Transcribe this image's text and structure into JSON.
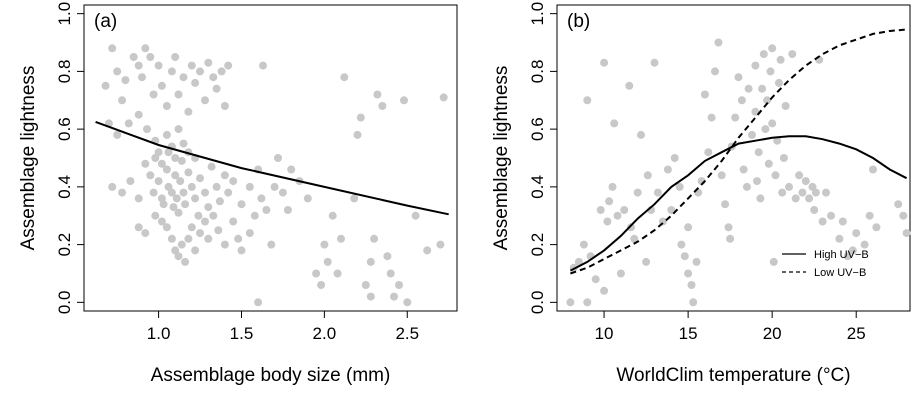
{
  "chart_data": [
    {
      "type": "scatter",
      "panel_label": "(a)",
      "xlabel": "Assemblage body size (mm)",
      "ylabel": "Assemblage lightness",
      "xlim": [
        0.55,
        2.8
      ],
      "ylim": [
        -0.03,
        1.03
      ],
      "xticks": [
        "1.0",
        "1.5",
        "2.0",
        "2.5"
      ],
      "yticks": [
        "0.0",
        "0.2",
        "0.4",
        "0.6",
        "0.8",
        "1.0"
      ],
      "point_color": "#c8c8c8",
      "points": [
        [
          0.68,
          0.75
        ],
        [
          0.72,
          0.88
        ],
        [
          0.75,
          0.8
        ],
        [
          0.7,
          0.62
        ],
        [
          0.78,
          0.7
        ],
        [
          0.8,
          0.77
        ],
        [
          0.85,
          0.85
        ],
        [
          0.88,
          0.82
        ],
        [
          0.9,
          0.78
        ],
        [
          0.92,
          0.88
        ],
        [
          0.95,
          0.85
        ],
        [
          0.97,
          0.72
        ],
        [
          1.0,
          0.82
        ],
        [
          1.02,
          0.75
        ],
        [
          1.05,
          0.68
        ],
        [
          1.08,
          0.8
        ],
        [
          1.1,
          0.85
        ],
        [
          1.12,
          0.72
        ],
        [
          1.15,
          0.78
        ],
        [
          1.18,
          0.66
        ],
        [
          1.2,
          0.82
        ],
        [
          1.22,
          0.76
        ],
        [
          1.25,
          0.8
        ],
        [
          1.28,
          0.7
        ],
        [
          1.3,
          0.83
        ],
        [
          1.33,
          0.78
        ],
        [
          1.35,
          0.74
        ],
        [
          1.38,
          0.8
        ],
        [
          1.4,
          0.68
        ],
        [
          1.42,
          0.82
        ],
        [
          0.75,
          0.58
        ],
        [
          0.82,
          0.62
        ],
        [
          0.88,
          0.65
        ],
        [
          0.93,
          0.6
        ],
        [
          0.98,
          0.56
        ],
        [
          1.0,
          0.52
        ],
        [
          1.05,
          0.58
        ],
        [
          1.08,
          0.54
        ],
        [
          1.12,
          0.6
        ],
        [
          1.15,
          0.55
        ],
        [
          0.72,
          0.4
        ],
        [
          0.78,
          0.38
        ],
        [
          0.83,
          0.42
        ],
        [
          0.88,
          0.36
        ],
        [
          0.92,
          0.48
        ],
        [
          0.95,
          0.44
        ],
        [
          0.97,
          0.38
        ],
        [
          1.0,
          0.42
        ],
        [
          1.02,
          0.36
        ],
        [
          1.03,
          0.34
        ],
        [
          1.05,
          0.46
        ],
        [
          1.06,
          0.4
        ],
        [
          1.08,
          0.38
        ],
        [
          1.09,
          0.33
        ],
        [
          1.1,
          0.44
        ],
        [
          1.11,
          0.36
        ],
        [
          1.12,
          0.31
        ],
        [
          1.13,
          0.42
        ],
        [
          1.15,
          0.38
        ],
        [
          1.16,
          0.34
        ],
        [
          1.18,
          0.45
        ],
        [
          1.2,
          0.4
        ],
        [
          1.22,
          0.36
        ],
        [
          1.24,
          0.3
        ],
        [
          1.25,
          0.43
        ],
        [
          1.28,
          0.38
        ],
        [
          1.3,
          0.33
        ],
        [
          1.32,
          0.47
        ],
        [
          1.35,
          0.4
        ],
        [
          1.37,
          0.35
        ],
        [
          1.4,
          0.44
        ],
        [
          1.42,
          0.38
        ],
        [
          1.45,
          0.42
        ],
        [
          0.98,
          0.5
        ],
        [
          1.02,
          0.48
        ],
        [
          1.06,
          0.52
        ],
        [
          1.1,
          0.5
        ],
        [
          1.14,
          0.49
        ],
        [
          1.18,
          0.52
        ],
        [
          1.22,
          0.5
        ],
        [
          0.88,
          0.26
        ],
        [
          0.92,
          0.24
        ],
        [
          0.98,
          0.3
        ],
        [
          1.02,
          0.28
        ],
        [
          1.05,
          0.26
        ],
        [
          1.08,
          0.22
        ],
        [
          1.1,
          0.18
        ],
        [
          1.12,
          0.16
        ],
        [
          1.14,
          0.2
        ],
        [
          1.16,
          0.14
        ],
        [
          1.18,
          0.22
        ],
        [
          1.2,
          0.26
        ],
        [
          1.22,
          0.18
        ],
        [
          1.25,
          0.24
        ],
        [
          1.28,
          0.28
        ],
        [
          1.3,
          0.22
        ],
        [
          1.33,
          0.3
        ],
        [
          1.36,
          0.25
        ],
        [
          1.4,
          0.2
        ],
        [
          1.45,
          0.28
        ],
        [
          1.48,
          0.22
        ],
        [
          1.5,
          0.18
        ],
        [
          1.55,
          0.24
        ],
        [
          1.58,
          0.3
        ],
        [
          1.62,
          0.36
        ],
        [
          1.65,
          0.32
        ],
        [
          1.7,
          0.4
        ],
        [
          1.72,
          0.5
        ],
        [
          1.5,
          0.34
        ],
        [
          1.55,
          0.4
        ],
        [
          1.6,
          0.46
        ],
        [
          1.63,
          0.82
        ],
        [
          1.6,
          0.0
        ],
        [
          1.8,
          0.46
        ],
        [
          1.85,
          0.42
        ],
        [
          1.78,
          0.32
        ],
        [
          1.9,
          0.36
        ],
        [
          1.95,
          0.1
        ],
        [
          1.98,
          0.06
        ],
        [
          2.0,
          0.2
        ],
        [
          2.02,
          0.14
        ],
        [
          2.05,
          0.3
        ],
        [
          2.08,
          0.1
        ],
        [
          2.1,
          0.22
        ],
        [
          2.12,
          0.78
        ],
        [
          2.2,
          0.58
        ],
        [
          2.22,
          0.64
        ],
        [
          2.25,
          0.06
        ],
        [
          2.28,
          0.14
        ],
        [
          2.3,
          0.22
        ],
        [
          2.32,
          0.72
        ],
        [
          2.35,
          0.68
        ],
        [
          2.38,
          0.16
        ],
        [
          2.4,
          0.1
        ],
        [
          2.42,
          0.02
        ],
        [
          2.45,
          0.06
        ],
        [
          2.48,
          0.7
        ],
        [
          2.5,
          0.0
        ],
        [
          2.55,
          0.3
        ],
        [
          2.62,
          0.18
        ],
        [
          2.7,
          0.2
        ],
        [
          2.72,
          0.71
        ],
        [
          2.28,
          0.02
        ],
        [
          2.18,
          0.36
        ],
        [
          1.68,
          0.2
        ],
        [
          1.75,
          0.38
        ]
      ],
      "series": [
        {
          "line_style": "solid",
          "x": [
            0.62,
            1.0,
            1.5,
            2.0,
            2.5,
            2.75
          ],
          "y": [
            0.625,
            0.545,
            0.465,
            0.4,
            0.335,
            0.305
          ]
        }
      ]
    },
    {
      "type": "scatter",
      "panel_label": "(b)",
      "xlabel": "WorldClim temperature (°C)",
      "ylabel": "Assemblage lightness",
      "xlim": [
        7.2,
        28.2
      ],
      "ylim": [
        -0.03,
        1.03
      ],
      "xticks": [
        "10",
        "15",
        "20",
        "25"
      ],
      "yticks": [
        "0.0",
        "0.2",
        "0.4",
        "0.6",
        "0.8",
        "1.0"
      ],
      "point_color": "#c8c8c8",
      "legend_position": "bottom-right",
      "points": [
        [
          8.0,
          0.0
        ],
        [
          8.2,
          0.12
        ],
        [
          8.5,
          0.14
        ],
        [
          8.8,
          0.2
        ],
        [
          9.0,
          0.7
        ],
        [
          9.0,
          0.0
        ],
        [
          9.2,
          0.16
        ],
        [
          9.5,
          0.08
        ],
        [
          9.8,
          0.32
        ],
        [
          10.0,
          0.04
        ],
        [
          10.0,
          0.83
        ],
        [
          10.2,
          0.28
        ],
        [
          10.3,
          0.35
        ],
        [
          10.5,
          0.4
        ],
        [
          10.6,
          0.62
        ],
        [
          10.8,
          0.3
        ],
        [
          11.0,
          0.1
        ],
        [
          11.2,
          0.32
        ],
        [
          11.5,
          0.75
        ],
        [
          11.6,
          0.26
        ],
        [
          11.8,
          0.22
        ],
        [
          12.0,
          0.38
        ],
        [
          12.2,
          0.58
        ],
        [
          12.5,
          0.14
        ],
        [
          12.6,
          0.44
        ],
        [
          12.8,
          0.32
        ],
        [
          13.0,
          0.83
        ],
        [
          13.2,
          0.38
        ],
        [
          13.5,
          0.28
        ],
        [
          13.8,
          0.46
        ],
        [
          14.0,
          0.32
        ],
        [
          14.2,
          0.5
        ],
        [
          14.5,
          0.4
        ],
        [
          14.6,
          0.2
        ],
        [
          14.8,
          0.16
        ],
        [
          15.0,
          0.26
        ],
        [
          15.0,
          0.1
        ],
        [
          15.2,
          0.06
        ],
        [
          15.3,
          0.0
        ],
        [
          15.5,
          0.14
        ],
        [
          15.6,
          0.38
        ],
        [
          15.8,
          0.42
        ],
        [
          16.0,
          0.72
        ],
        [
          16.2,
          0.52
        ],
        [
          16.4,
          0.64
        ],
        [
          16.6,
          0.8
        ],
        [
          16.8,
          0.9
        ],
        [
          17.0,
          0.44
        ],
        [
          17.2,
          0.34
        ],
        [
          17.4,
          0.26
        ],
        [
          17.5,
          0.22
        ],
        [
          17.6,
          0.54
        ],
        [
          17.8,
          0.64
        ],
        [
          18.0,
          0.78
        ],
        [
          18.2,
          0.7
        ],
        [
          18.3,
          0.46
        ],
        [
          18.5,
          0.4
        ],
        [
          18.6,
          0.74
        ],
        [
          18.8,
          0.58
        ],
        [
          19.0,
          0.82
        ],
        [
          19.0,
          0.66
        ],
        [
          19.1,
          0.42
        ],
        [
          19.2,
          0.52
        ],
        [
          19.3,
          0.36
        ],
        [
          19.4,
          0.74
        ],
        [
          19.5,
          0.86
        ],
        [
          19.6,
          0.6
        ],
        [
          19.7,
          0.7
        ],
        [
          19.8,
          0.48
        ],
        [
          19.9,
          0.8
        ],
        [
          20.0,
          0.88
        ],
        [
          20.0,
          0.62
        ],
        [
          20.1,
          0.14
        ],
        [
          20.2,
          0.44
        ],
        [
          20.3,
          0.56
        ],
        [
          20.4,
          0.76
        ],
        [
          20.5,
          0.84
        ],
        [
          20.6,
          0.38
        ],
        [
          20.7,
          0.5
        ],
        [
          20.8,
          0.68
        ],
        [
          21.0,
          0.4
        ],
        [
          21.2,
          0.86
        ],
        [
          21.4,
          0.36
        ],
        [
          21.6,
          0.44
        ],
        [
          21.8,
          0.38
        ],
        [
          22.0,
          0.42
        ],
        [
          22.2,
          0.36
        ],
        [
          22.4,
          0.4
        ],
        [
          22.5,
          0.32
        ],
        [
          22.6,
          0.38
        ],
        [
          22.8,
          0.84
        ],
        [
          23.0,
          0.28
        ],
        [
          23.2,
          0.38
        ],
        [
          23.5,
          0.3
        ],
        [
          24.0,
          0.22
        ],
        [
          24.2,
          0.28
        ],
        [
          24.5,
          0.16
        ],
        [
          24.8,
          0.18
        ],
        [
          25.0,
          0.24
        ],
        [
          25.5,
          0.2
        ],
        [
          25.8,
          0.3
        ],
        [
          26.0,
          0.46
        ],
        [
          26.2,
          0.26
        ],
        [
          27.5,
          0.34
        ],
        [
          27.8,
          0.3
        ],
        [
          28.0,
          0.24
        ]
      ],
      "series": [
        {
          "name": "High UV−B",
          "line_style": "solid",
          "x": [
            8,
            9,
            10,
            11,
            12,
            13,
            14,
            15,
            16,
            17,
            18,
            19,
            20,
            21,
            22,
            23,
            24,
            25,
            26,
            27,
            28
          ],
          "y": [
            0.11,
            0.14,
            0.18,
            0.23,
            0.29,
            0.34,
            0.4,
            0.44,
            0.49,
            0.52,
            0.55,
            0.56,
            0.57,
            0.575,
            0.575,
            0.565,
            0.55,
            0.53,
            0.5,
            0.46,
            0.43
          ]
        },
        {
          "name": "Low UV−B",
          "line_style": "dashed",
          "x": [
            8,
            9,
            10,
            11,
            12,
            13,
            14,
            15,
            16,
            17,
            18,
            19,
            20,
            21,
            22,
            23,
            24,
            25,
            26,
            27,
            28
          ],
          "y": [
            0.1,
            0.12,
            0.15,
            0.18,
            0.21,
            0.25,
            0.3,
            0.36,
            0.42,
            0.49,
            0.57,
            0.64,
            0.71,
            0.77,
            0.82,
            0.86,
            0.89,
            0.91,
            0.93,
            0.94,
            0.945
          ]
        }
      ]
    }
  ]
}
